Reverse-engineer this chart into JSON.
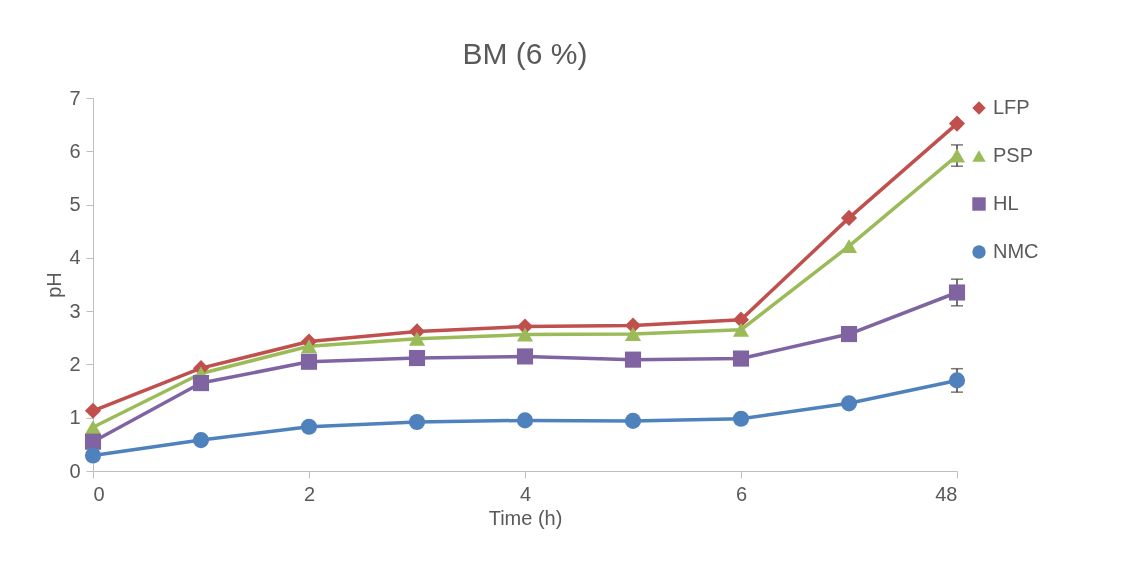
{
  "chart_data": {
    "type": "line",
    "title": "BM (6 %)",
    "xlabel": "Time (h)",
    "ylabel": "pH",
    "categories": [
      "0",
      null,
      "2",
      null,
      "4",
      null,
      "6",
      null,
      "48"
    ],
    "series": [
      {
        "name": "LFP",
        "color": "#c0504d",
        "marker": "diamond",
        "values": [
          1.13,
          1.93,
          2.43,
          2.62,
          2.71,
          2.73,
          2.84,
          4.75,
          6.52
        ]
      },
      {
        "name": "PSP",
        "color": "#9bbb59",
        "marker": "triangle",
        "values": [
          0.82,
          1.83,
          2.34,
          2.48,
          2.56,
          2.57,
          2.65,
          4.22,
          5.92
        ],
        "errors": [
          null,
          null,
          null,
          null,
          null,
          null,
          null,
          null,
          0.2
        ]
      },
      {
        "name": "HL",
        "color": "#8064a2",
        "marker": "square",
        "values": [
          0.55,
          1.65,
          2.05,
          2.12,
          2.15,
          2.09,
          2.11,
          2.57,
          3.35
        ],
        "errors": [
          null,
          null,
          null,
          null,
          null,
          null,
          null,
          null,
          0.25
        ]
      },
      {
        "name": "NMC",
        "color": "#4f81bd",
        "marker": "circle",
        "values": [
          0.29,
          0.58,
          0.83,
          0.92,
          0.95,
          0.94,
          0.98,
          1.27,
          1.7
        ],
        "errors": [
          null,
          null,
          null,
          null,
          null,
          null,
          null,
          null,
          0.22
        ]
      }
    ],
    "ylim": [
      0,
      7
    ],
    "yticks": [
      0,
      1,
      2,
      3,
      4,
      5,
      6,
      7
    ],
    "grid": false,
    "legend": "right",
    "line_style": "solid"
  }
}
